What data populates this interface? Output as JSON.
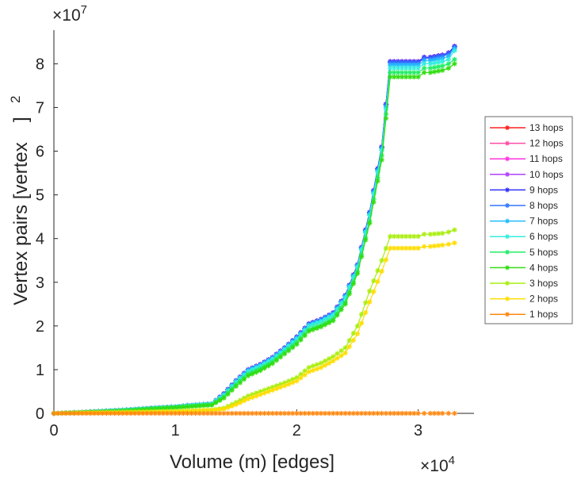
{
  "chart_data": {
    "type": "line",
    "xlabel": "Volume (m) [edges]",
    "ylabel": "Vertex pairs [vertex",
    "ylabel_sup": "2",
    "ylabel_close": "]",
    "x_multiplier": "×10",
    "x_multiplier_exp": "4",
    "y_multiplier": "×10",
    "y_multiplier_exp": "7",
    "xlim": [
      0,
      3.46
    ],
    "ylim": [
      0,
      8.77
    ],
    "xticks": [
      0,
      1,
      2,
      3
    ],
    "xtick_labels": [
      "0",
      "1",
      "2",
      "3"
    ],
    "yticks": [
      0,
      1,
      2,
      3,
      4,
      5,
      6,
      7,
      8
    ],
    "ytick_labels": [
      "0",
      "1",
      "2",
      "3",
      "4",
      "5",
      "6",
      "7",
      "8"
    ],
    "grid": false,
    "legend_placement": "right",
    "marker": "asterisk",
    "x": [
      0,
      0.2,
      0.4,
      0.6,
      0.8,
      1.0,
      1.1,
      1.2,
      1.3,
      1.4,
      1.5,
      1.6,
      1.7,
      1.8,
      1.9,
      2.0,
      2.1,
      2.2,
      2.3,
      2.4,
      2.5,
      2.6,
      2.7,
      2.77,
      2.9,
      3.0,
      3.05,
      3.1,
      3.2,
      3.25,
      3.3
    ],
    "series": [
      {
        "name": "13 hops",
        "color": "#ff2020",
        "values": [
          0,
          0.02,
          0.05,
          0.08,
          0.12,
          0.15,
          0.18,
          0.2,
          0.22,
          0.45,
          0.75,
          1.0,
          1.12,
          1.28,
          1.5,
          1.75,
          2.05,
          2.15,
          2.3,
          2.7,
          3.4,
          4.6,
          6.1,
          8.05,
          8.05,
          8.05,
          8.15,
          8.15,
          8.2,
          8.25,
          8.4
        ]
      },
      {
        "name": "12 hops",
        "color": "#ff4da6",
        "values": [
          0,
          0.02,
          0.05,
          0.08,
          0.12,
          0.15,
          0.18,
          0.2,
          0.22,
          0.45,
          0.75,
          1.0,
          1.12,
          1.28,
          1.5,
          1.75,
          2.05,
          2.15,
          2.3,
          2.7,
          3.4,
          4.6,
          6.1,
          8.05,
          8.05,
          8.05,
          8.15,
          8.15,
          8.2,
          8.25,
          8.4
        ]
      },
      {
        "name": "11 hops",
        "color": "#ff33dd",
        "values": [
          0,
          0.02,
          0.05,
          0.08,
          0.12,
          0.15,
          0.18,
          0.2,
          0.22,
          0.45,
          0.75,
          1.0,
          1.12,
          1.28,
          1.5,
          1.75,
          2.05,
          2.15,
          2.3,
          2.7,
          3.4,
          4.6,
          6.1,
          8.05,
          8.05,
          8.05,
          8.15,
          8.15,
          8.2,
          8.25,
          8.4
        ]
      },
      {
        "name": "10 hops",
        "color": "#b040ff",
        "values": [
          0,
          0.02,
          0.05,
          0.08,
          0.12,
          0.15,
          0.18,
          0.2,
          0.22,
          0.45,
          0.75,
          1.0,
          1.12,
          1.28,
          1.5,
          1.75,
          2.05,
          2.15,
          2.3,
          2.7,
          3.4,
          4.6,
          6.1,
          8.05,
          8.05,
          8.05,
          8.15,
          8.15,
          8.2,
          8.25,
          8.4
        ]
      },
      {
        "name": "9 hops",
        "color": "#3030ff",
        "values": [
          0,
          0.02,
          0.05,
          0.08,
          0.12,
          0.15,
          0.18,
          0.2,
          0.22,
          0.45,
          0.75,
          1.0,
          1.12,
          1.28,
          1.5,
          1.75,
          2.05,
          2.15,
          2.3,
          2.7,
          3.4,
          4.6,
          6.1,
          8.05,
          8.05,
          8.05,
          8.15,
          8.15,
          8.2,
          8.25,
          8.4
        ]
      },
      {
        "name": "8 hops",
        "color": "#3377ff",
        "values": [
          0,
          0.02,
          0.05,
          0.08,
          0.12,
          0.15,
          0.18,
          0.2,
          0.22,
          0.44,
          0.74,
          0.99,
          1.11,
          1.27,
          1.49,
          1.74,
          2.04,
          2.14,
          2.29,
          2.69,
          3.39,
          4.58,
          6.08,
          8.02,
          8.02,
          8.02,
          8.12,
          8.12,
          8.18,
          8.22,
          8.38
        ]
      },
      {
        "name": "7 hops",
        "color": "#22bbff",
        "values": [
          0,
          0.02,
          0.05,
          0.08,
          0.12,
          0.15,
          0.18,
          0.2,
          0.22,
          0.43,
          0.73,
          0.98,
          1.1,
          1.26,
          1.48,
          1.72,
          2.02,
          2.12,
          2.27,
          2.67,
          3.37,
          4.56,
          6.05,
          7.97,
          7.97,
          7.97,
          8.07,
          8.07,
          8.12,
          8.17,
          8.35
        ]
      },
      {
        "name": "6 hops",
        "color": "#33eedd",
        "values": [
          0,
          0.02,
          0.05,
          0.08,
          0.12,
          0.15,
          0.18,
          0.2,
          0.22,
          0.42,
          0.72,
          0.96,
          1.08,
          1.24,
          1.46,
          1.7,
          2.0,
          2.1,
          2.25,
          2.65,
          3.35,
          4.53,
          6.02,
          7.9,
          7.9,
          7.9,
          8.0,
          8.0,
          8.05,
          8.1,
          8.3
        ]
      },
      {
        "name": "5 hops",
        "color": "#22ee66",
        "values": [
          0,
          0.02,
          0.04,
          0.07,
          0.11,
          0.14,
          0.16,
          0.18,
          0.2,
          0.38,
          0.66,
          0.9,
          1.02,
          1.18,
          1.4,
          1.63,
          1.92,
          2.02,
          2.17,
          2.55,
          3.25,
          4.4,
          5.9,
          7.8,
          7.8,
          7.8,
          7.9,
          7.9,
          7.95,
          8.0,
          8.1
        ]
      },
      {
        "name": "4 hops",
        "color": "#33dd11",
        "values": [
          0,
          0.02,
          0.04,
          0.06,
          0.1,
          0.13,
          0.15,
          0.17,
          0.19,
          0.35,
          0.62,
          0.86,
          0.98,
          1.14,
          1.36,
          1.58,
          1.88,
          1.98,
          2.12,
          2.5,
          3.2,
          4.35,
          5.8,
          7.7,
          7.7,
          7.7,
          7.8,
          7.8,
          7.85,
          7.9,
          8.0
        ]
      },
      {
        "name": "3 hops",
        "color": "#aaee11",
        "values": [
          0,
          0.01,
          0.02,
          0.03,
          0.04,
          0.05,
          0.06,
          0.07,
          0.08,
          0.12,
          0.25,
          0.4,
          0.5,
          0.6,
          0.7,
          0.82,
          1.05,
          1.15,
          1.3,
          1.5,
          2.0,
          2.8,
          3.5,
          4.05,
          4.05,
          4.05,
          4.1,
          4.1,
          4.12,
          4.15,
          4.2
        ]
      },
      {
        "name": "2 hops",
        "color": "#ffdd00",
        "values": [
          0,
          0.01,
          0.02,
          0.02,
          0.03,
          0.04,
          0.05,
          0.06,
          0.07,
          0.1,
          0.2,
          0.33,
          0.43,
          0.53,
          0.63,
          0.74,
          0.95,
          1.05,
          1.2,
          1.38,
          1.82,
          2.55,
          3.25,
          3.78,
          3.78,
          3.78,
          3.82,
          3.82,
          3.85,
          3.87,
          3.9
        ]
      },
      {
        "name": "1 hops",
        "color": "#ff8811",
        "values": [
          0,
          0,
          0,
          0,
          0,
          0,
          0,
          0,
          0,
          0,
          0,
          0,
          0,
          0,
          0,
          0,
          0,
          0,
          0,
          0,
          0,
          0,
          0,
          0,
          0,
          0,
          0,
          0,
          0,
          0,
          0
        ]
      }
    ]
  }
}
